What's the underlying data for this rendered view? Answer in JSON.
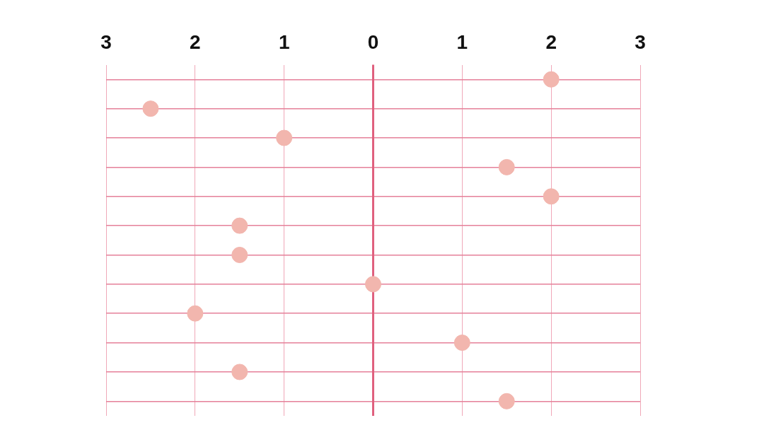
{
  "chart_data": {
    "type": "scatter",
    "orientation": "horizontal",
    "categories": [
      null,
      null,
      null,
      null,
      null,
      null,
      null,
      null,
      null,
      null,
      null,
      null
    ],
    "series": [
      {
        "color": "#f2b6ae",
        "values": [
          2,
          -2.5,
          -1,
          1.5,
          2,
          -1.5,
          -1.5,
          0,
          -2,
          1,
          -1.5,
          1.5
        ]
      }
    ],
    "xlim": [
      -3,
      3
    ],
    "xticks": [
      {
        "value": -3,
        "label": "3"
      },
      {
        "value": -2,
        "label": "2"
      },
      {
        "value": -1,
        "label": "1"
      },
      0,
      1,
      {
        "value": 2,
        "label": "2"
      },
      {
        "value": 3,
        "label": "3"
      }
    ],
    "tick_labels": "x",
    "grid": true,
    "marker": "circle",
    "ref_lines": [
      {
        "axis": "x",
        "value": 0,
        "color": "#e0607e"
      }
    ]
  }
}
